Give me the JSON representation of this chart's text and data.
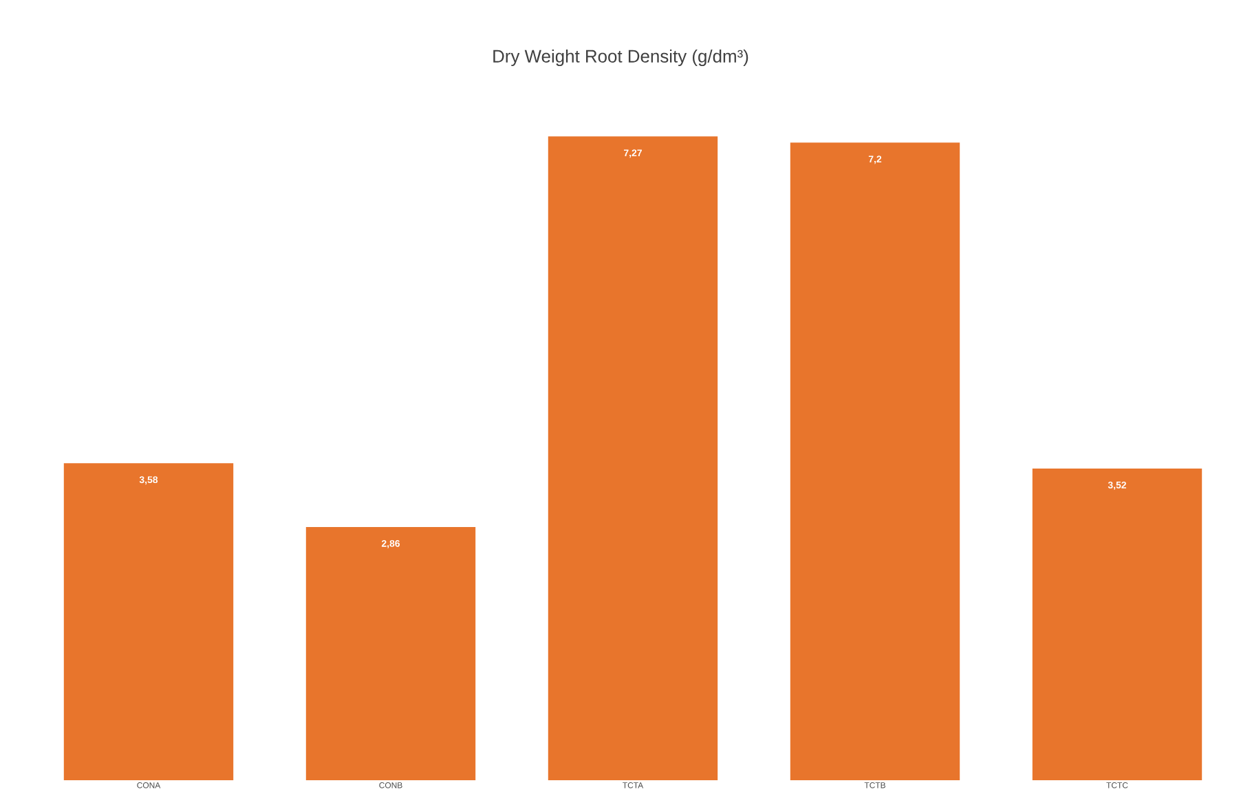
{
  "chart_data": {
    "type": "bar",
    "title": "Dry Weight Root Density (g/dm³)",
    "categories": [
      "CONA",
      "CONB",
      "TCTA",
      "TCTB",
      "TCTC"
    ],
    "values": [
      3.58,
      2.86,
      7.27,
      7.2,
      3.52
    ],
    "value_labels": [
      "3,58",
      "2,86",
      "7,27",
      "7,2",
      "3,52"
    ],
    "color": "#e8752c"
  }
}
